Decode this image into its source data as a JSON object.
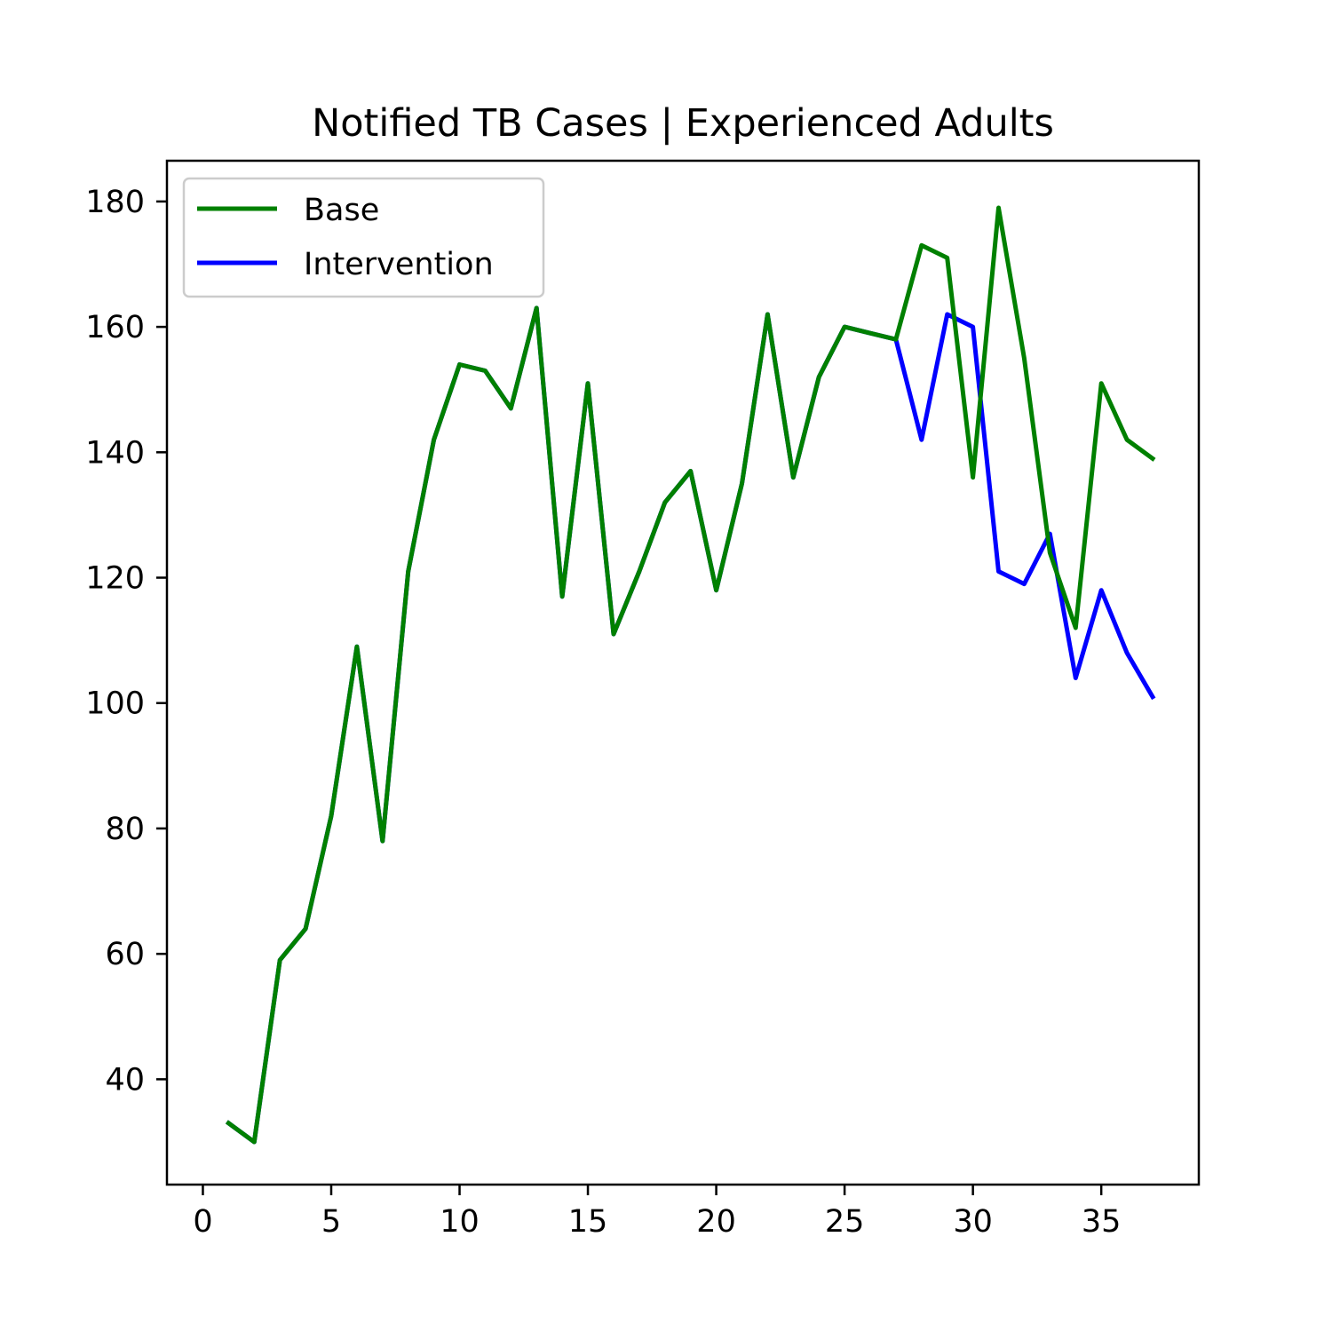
{
  "chart_data": {
    "type": "line",
    "title": "Notified TB Cases | Experienced Adults",
    "xlabel": "",
    "ylabel": "",
    "xlim": [
      -1.4,
      38.8
    ],
    "ylim": [
      23.2,
      186.5
    ],
    "xticks": [
      0,
      5,
      10,
      15,
      20,
      25,
      30,
      35
    ],
    "yticks": [
      40,
      60,
      80,
      100,
      120,
      140,
      160,
      180
    ],
    "grid": false,
    "legend_position": "top-left",
    "x": [
      1,
      2,
      3,
      4,
      5,
      6,
      7,
      8,
      9,
      10,
      11,
      12,
      13,
      14,
      15,
      16,
      17,
      18,
      19,
      20,
      21,
      22,
      23,
      24,
      25,
      26,
      27,
      28,
      29,
      30,
      31,
      32,
      33,
      34,
      35,
      36,
      37
    ],
    "series": [
      {
        "name": "Intervention",
        "color": "#0000ff",
        "values": [
          33,
          30,
          59,
          64,
          82,
          109,
          78,
          121,
          142,
          154,
          153,
          147,
          163,
          117,
          151,
          111,
          121,
          132,
          137,
          118,
          135,
          162,
          136,
          152,
          160,
          159,
          158,
          142,
          162,
          160,
          121,
          119,
          127,
          104,
          118,
          108,
          101
        ]
      },
      {
        "name": "Base",
        "color": "#008000",
        "values": [
          33,
          30,
          59,
          64,
          82,
          109,
          78,
          121,
          142,
          154,
          153,
          147,
          163,
          117,
          151,
          111,
          121,
          132,
          137,
          118,
          135,
          162,
          136,
          152,
          160,
          159,
          158,
          173,
          171,
          136,
          179,
          155,
          124,
          112,
          151,
          142,
          139
        ]
      }
    ],
    "legend_order": [
      "Base",
      "Intervention"
    ]
  }
}
